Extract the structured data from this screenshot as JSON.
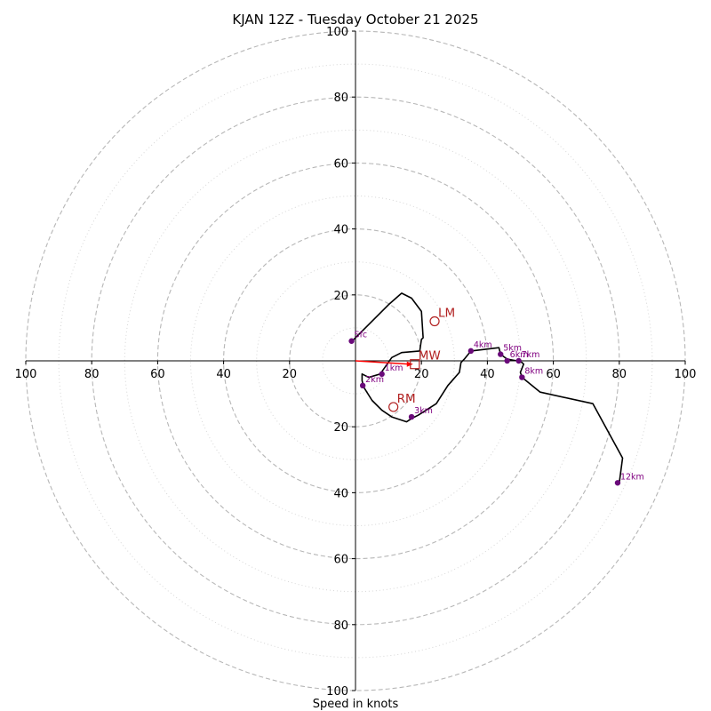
{
  "chart_data": {
    "type": "hodograph",
    "title": "KJAN 12Z - Tuesday October 21 2025",
    "xlabel": "Speed in knots",
    "ylabel": "",
    "xlim": [
      -100,
      100
    ],
    "ylim": [
      -100,
      100
    ],
    "ring_major": [
      20,
      40,
      60,
      80,
      100
    ],
    "ring_minor": [
      10,
      30,
      50,
      70,
      90
    ],
    "x_tick_labels": [
      {
        "v": -100,
        "label": "100"
      },
      {
        "v": -80,
        "label": "80"
      },
      {
        "v": -60,
        "label": "60"
      },
      {
        "v": -40,
        "label": "40"
      },
      {
        "v": -20,
        "label": "20"
      },
      {
        "v": 20,
        "label": "20"
      },
      {
        "v": 40,
        "label": "40"
      },
      {
        "v": 60,
        "label": "60"
      },
      {
        "v": 80,
        "label": "80"
      },
      {
        "v": 100,
        "label": "100"
      }
    ],
    "y_tick_labels": [
      {
        "v": 100,
        "label": "100"
      },
      {
        "v": 80,
        "label": "80"
      },
      {
        "v": 60,
        "label": "60"
      },
      {
        "v": 40,
        "label": "40"
      },
      {
        "v": 20,
        "label": "20"
      },
      {
        "v": -20,
        "label": "20"
      },
      {
        "v": -40,
        "label": "40"
      },
      {
        "v": -60,
        "label": "60"
      },
      {
        "v": -80,
        "label": "80"
      },
      {
        "v": -100,
        "label": "100"
      }
    ],
    "trace": [
      [
        -1,
        6
      ],
      [
        3,
        10
      ],
      [
        10,
        17
      ],
      [
        14,
        20.5
      ],
      [
        17,
        19
      ],
      [
        20,
        15
      ],
      [
        20.5,
        7
      ],
      [
        20,
        6.5
      ],
      [
        19.5,
        3
      ],
      [
        14,
        2.5
      ],
      [
        11,
        1
      ],
      [
        7.5,
        -4
      ],
      [
        4,
        -5
      ],
      [
        2,
        -4
      ],
      [
        2,
        -6
      ],
      [
        2.5,
        -8
      ],
      [
        5,
        -12
      ],
      [
        8,
        -15
      ],
      [
        11,
        -17
      ],
      [
        15.5,
        -18.5
      ],
      [
        17,
        -17.5
      ],
      [
        19,
        -16.5
      ],
      [
        24.5,
        -13
      ],
      [
        28,
        -7.5
      ],
      [
        31.5,
        -3.5
      ],
      [
        32,
        -0.5
      ],
      [
        33,
        0.5
      ],
      [
        35,
        3
      ],
      [
        43.5,
        4
      ],
      [
        44,
        2
      ],
      [
        46,
        0.5
      ],
      [
        49,
        0
      ],
      [
        50.5,
        -0.5
      ],
      [
        51,
        -1
      ],
      [
        50,
        -3.5
      ],
      [
        50.5,
        -5
      ],
      [
        56,
        -9.5
      ],
      [
        72,
        -13
      ],
      [
        81,
        -29.5
      ],
      [
        80,
        -37
      ]
    ],
    "height_markers": [
      {
        "label": "Sfc",
        "u": -1.2,
        "v": 6
      },
      {
        "label": "1km",
        "u": 8,
        "v": -4
      },
      {
        "label": "2km",
        "u": 2.2,
        "v": -7.5
      },
      {
        "label": "3km",
        "u": 17,
        "v": -17
      },
      {
        "label": "4km",
        "u": 35,
        "v": 3
      },
      {
        "label": "5km",
        "u": 44,
        "v": 2
      },
      {
        "label": "6km",
        "u": 46,
        "v": 0
      },
      {
        "label": "7km",
        "u": 49.5,
        "v": 0
      },
      {
        "label": "8km",
        "u": 50.5,
        "v": -5
      },
      {
        "label": "12km",
        "u": 79.5,
        "v": -37
      }
    ],
    "storm_motions": [
      {
        "label": "LM",
        "u": 24,
        "v": 12,
        "marker": "circle"
      },
      {
        "label": "RM",
        "u": 11.5,
        "v": -14,
        "marker": "circle"
      },
      {
        "label": "MW",
        "u": 18,
        "v": -1,
        "marker": "square"
      }
    ],
    "motion_vector": {
      "from": [
        0,
        0
      ],
      "to": [
        18,
        -1
      ]
    },
    "colors": {
      "trace": "#000000",
      "marker": "#6a0a7a",
      "marker_label": "#800080",
      "storm_motion": "#b22222",
      "vector": "#ff0000",
      "ring_major": "#b7b7b7",
      "ring_minor": "#d6d6d6",
      "axis": "#000000"
    }
  }
}
